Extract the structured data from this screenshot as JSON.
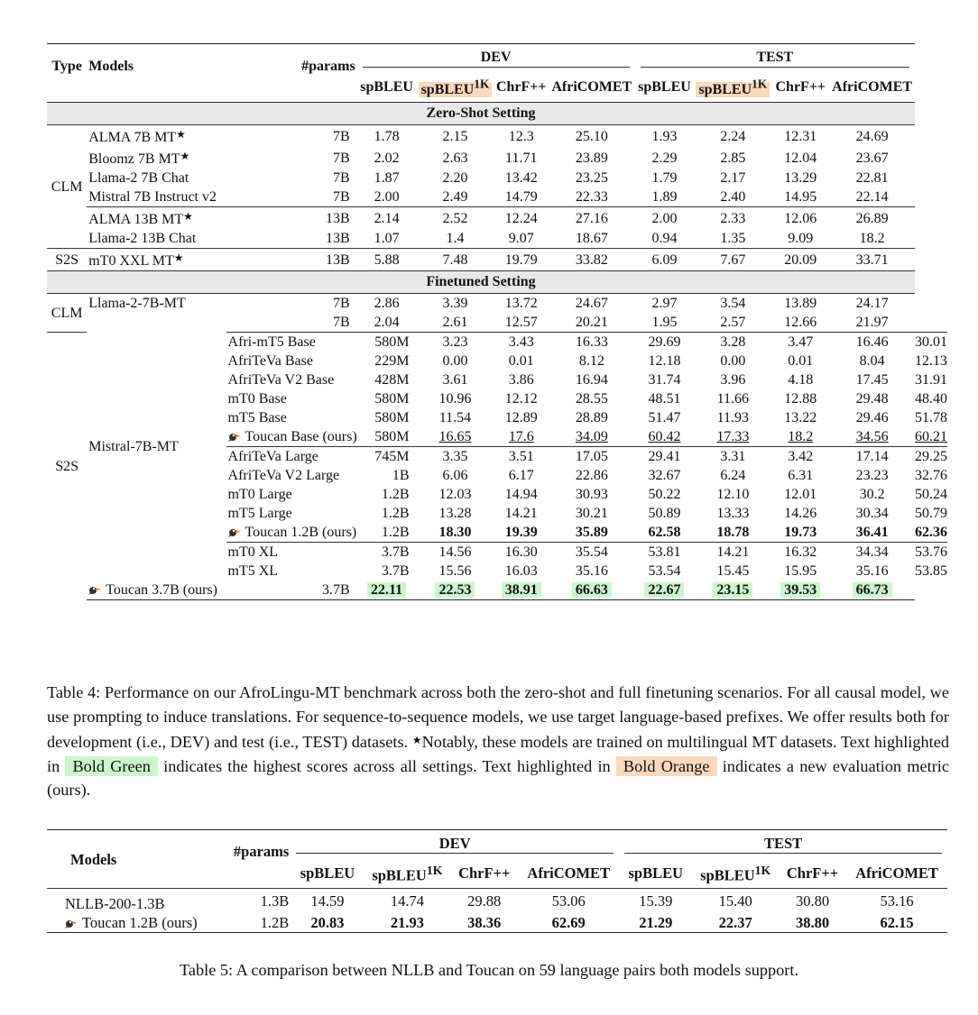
{
  "table4": {
    "headers": {
      "type": "Type",
      "models": "Models",
      "params": "#params",
      "dev": "DEV",
      "test": "TEST",
      "metrics": [
        "spBLEU",
        "spBLEU",
        "ChrF++",
        "AfriCOMET"
      ],
      "sup": "1K"
    },
    "sections": {
      "zero": "Zero-Shot Setting",
      "fine": "Finetuned Setting"
    },
    "groups": {
      "clm": "CLM",
      "s2s": "S2S"
    },
    "rows": {
      "r1": [
        "ALMA 7B MT",
        "7B",
        "1.78",
        "2.15",
        "12.3",
        "25.10",
        "1.93",
        "2.24",
        "12.31",
        "24.69"
      ],
      "r2": [
        "Bloomz 7B MT",
        "7B",
        "2.02",
        "2.63",
        "11.71",
        "23.89",
        "2.29",
        "2.85",
        "12.04",
        "23.67"
      ],
      "r3": [
        "Llama-2 7B Chat",
        "7B",
        "1.87",
        "2.20",
        "13.42",
        "23.25",
        "1.79",
        "2.17",
        "13.29",
        "22.81"
      ],
      "r4": [
        "Mistral 7B Instruct v2",
        "7B",
        "2.00",
        "2.49",
        "14.79",
        "22.33",
        "1.89",
        "2.40",
        "14.95",
        "22.14"
      ],
      "r5": [
        "ALMA 13B MT",
        "13B",
        "2.14",
        "2.52",
        "12.24",
        "27.16",
        "2.00",
        "2.33",
        "12.06",
        "26.89"
      ],
      "r6": [
        "Llama-2 13B Chat",
        "13B",
        "1.07",
        "1.4",
        "9.07",
        "18.67",
        "0.94",
        "1.35",
        "9.09",
        "18.2"
      ],
      "r7": [
        "mT0 XXL MT",
        "13B",
        "5.88",
        "7.48",
        "19.79",
        "33.82",
        "6.09",
        "7.67",
        "20.09",
        "33.71"
      ],
      "f1": [
        "Llama-2-7B-MT",
        "7B",
        "2.86",
        "3.39",
        "13.72",
        "24.67",
        "2.97",
        "3.54",
        "13.89",
        "24.17"
      ],
      "f2": [
        "Mistral-7B-MT",
        "7B",
        "2.04",
        "2.61",
        "12.57",
        "20.21",
        "1.95",
        "2.57",
        "12.66",
        "21.97"
      ],
      "f3": [
        "Afri-mT5 Base",
        "580M",
        "3.23",
        "3.43",
        "16.33",
        "29.69",
        "3.28",
        "3.47",
        "16.46",
        "30.01"
      ],
      "f4": [
        "AfriTeVa Base",
        "229M",
        "0.00",
        "0.01",
        "8.12",
        "12.18",
        "0.00",
        "0.01",
        "8.04",
        "12.13"
      ],
      "f5": [
        "AfriTeVa V2 Base",
        "428M",
        "3.61",
        "3.86",
        "16.94",
        "31.74",
        "3.96",
        "4.18",
        "17.45",
        "31.91"
      ],
      "f6": [
        "mT0 Base",
        "580M",
        "10.96",
        "12.12",
        "28.55",
        "48.51",
        "11.66",
        "12.88",
        "29.48",
        "48.40"
      ],
      "f7": [
        "mT5 Base",
        "580M",
        "11.54",
        "12.89",
        "28.89",
        "51.47",
        "11.93",
        "13.22",
        "29.46",
        "51.78"
      ],
      "f8": [
        "Toucan Base (ours)",
        "580M",
        "16.65",
        "17.6",
        "34.09",
        "60.42",
        "17.33",
        "18.2",
        "34.56",
        "60.21"
      ],
      "f9": [
        "AfriTeVa Large",
        "745M",
        "3.35",
        "3.51",
        "17.05",
        "29.41",
        "3.31",
        "3.42",
        "17.14",
        "29.25"
      ],
      "f10": [
        "AfriTeVa V2 Large",
        "1B",
        "6.06",
        "6.17",
        "22.86",
        "32.67",
        "6.24",
        "6.31",
        "23.23",
        "32.76"
      ],
      "f11": [
        "mT0 Large",
        "1.2B",
        "12.03",
        "14.94",
        "30.93",
        "50.22",
        "12.10",
        "12.01",
        "30.2",
        "50.24"
      ],
      "f12": [
        "mT5 Large",
        "1.2B",
        "13.28",
        "14.21",
        "30.21",
        "50.89",
        "13.33",
        "14.26",
        "30.34",
        "50.79"
      ],
      "f13": [
        "Toucan 1.2B (ours)",
        "1.2B",
        "18.30",
        "19.39",
        "35.89",
        "62.58",
        "18.78",
        "19.73",
        "36.41",
        "62.36"
      ],
      "f14": [
        "mT0 XL",
        "3.7B",
        "14.56",
        "16.30",
        "35.54",
        "53.81",
        "14.21",
        "16.32",
        "34.34",
        "53.76"
      ],
      "f15": [
        "mT5 XL",
        "3.7B",
        "15.56",
        "16.03",
        "35.16",
        "53.54",
        "15.45",
        "15.95",
        "35.16",
        "53.85"
      ],
      "f16": [
        "Toucan 3.7B (ours)",
        "3.7B",
        "22.11",
        "22.53",
        "38.91",
        "66.63",
        "22.67",
        "23.15",
        "39.53",
        "66.73"
      ]
    },
    "caption": {
      "p1": "Table 4: Performance on our AfroLingu-MT benchmark across both the zero-shot and full finetuning scenarios. For all causal model, we use prompting to induce translations. For sequence-to-sequence models, we use target language-based prefixes. We offer results both for development (i.e., DEV) and test (i.e., TEST) datasets. ",
      "p2": "Notably, these models are trained on multilingual MT datasets. Text highlighted in ",
      "green": "Bold Green",
      "p3": " indicates the highest scores across all settings. Text highlighted in ",
      "orange": "Bold Orange",
      "p4": " indicates a new evaluation metric (ours)."
    }
  },
  "table5": {
    "headers": {
      "models": "Models",
      "params": "#params",
      "dev": "DEV",
      "test": "TEST",
      "metrics": [
        "spBLEU",
        "spBLEU",
        "ChrF++",
        "AfriCOMET"
      ],
      "sup": "1K"
    },
    "rows": {
      "n1": [
        "NLLB-200-1.3B",
        "1.3B",
        "14.59",
        "14.74",
        "29.88",
        "53.06",
        "15.39",
        "15.40",
        "30.80",
        "53.16"
      ],
      "n2": [
        "Toucan 1.2B (ours)",
        "1.2B",
        "20.83",
        "21.93",
        "38.36",
        "62.69",
        "21.29",
        "22.37",
        "38.80",
        "62.15"
      ]
    },
    "caption": "Table 5: A comparison between NLLB and Toucan on 59 language pairs both models support."
  },
  "colors": {
    "green": "#cdf5cd",
    "orange": "#fcd9bd",
    "section_bg": "#e8e8e8"
  },
  "icons": {
    "toucan": "toucan-bird-icon",
    "star": "star-icon"
  }
}
